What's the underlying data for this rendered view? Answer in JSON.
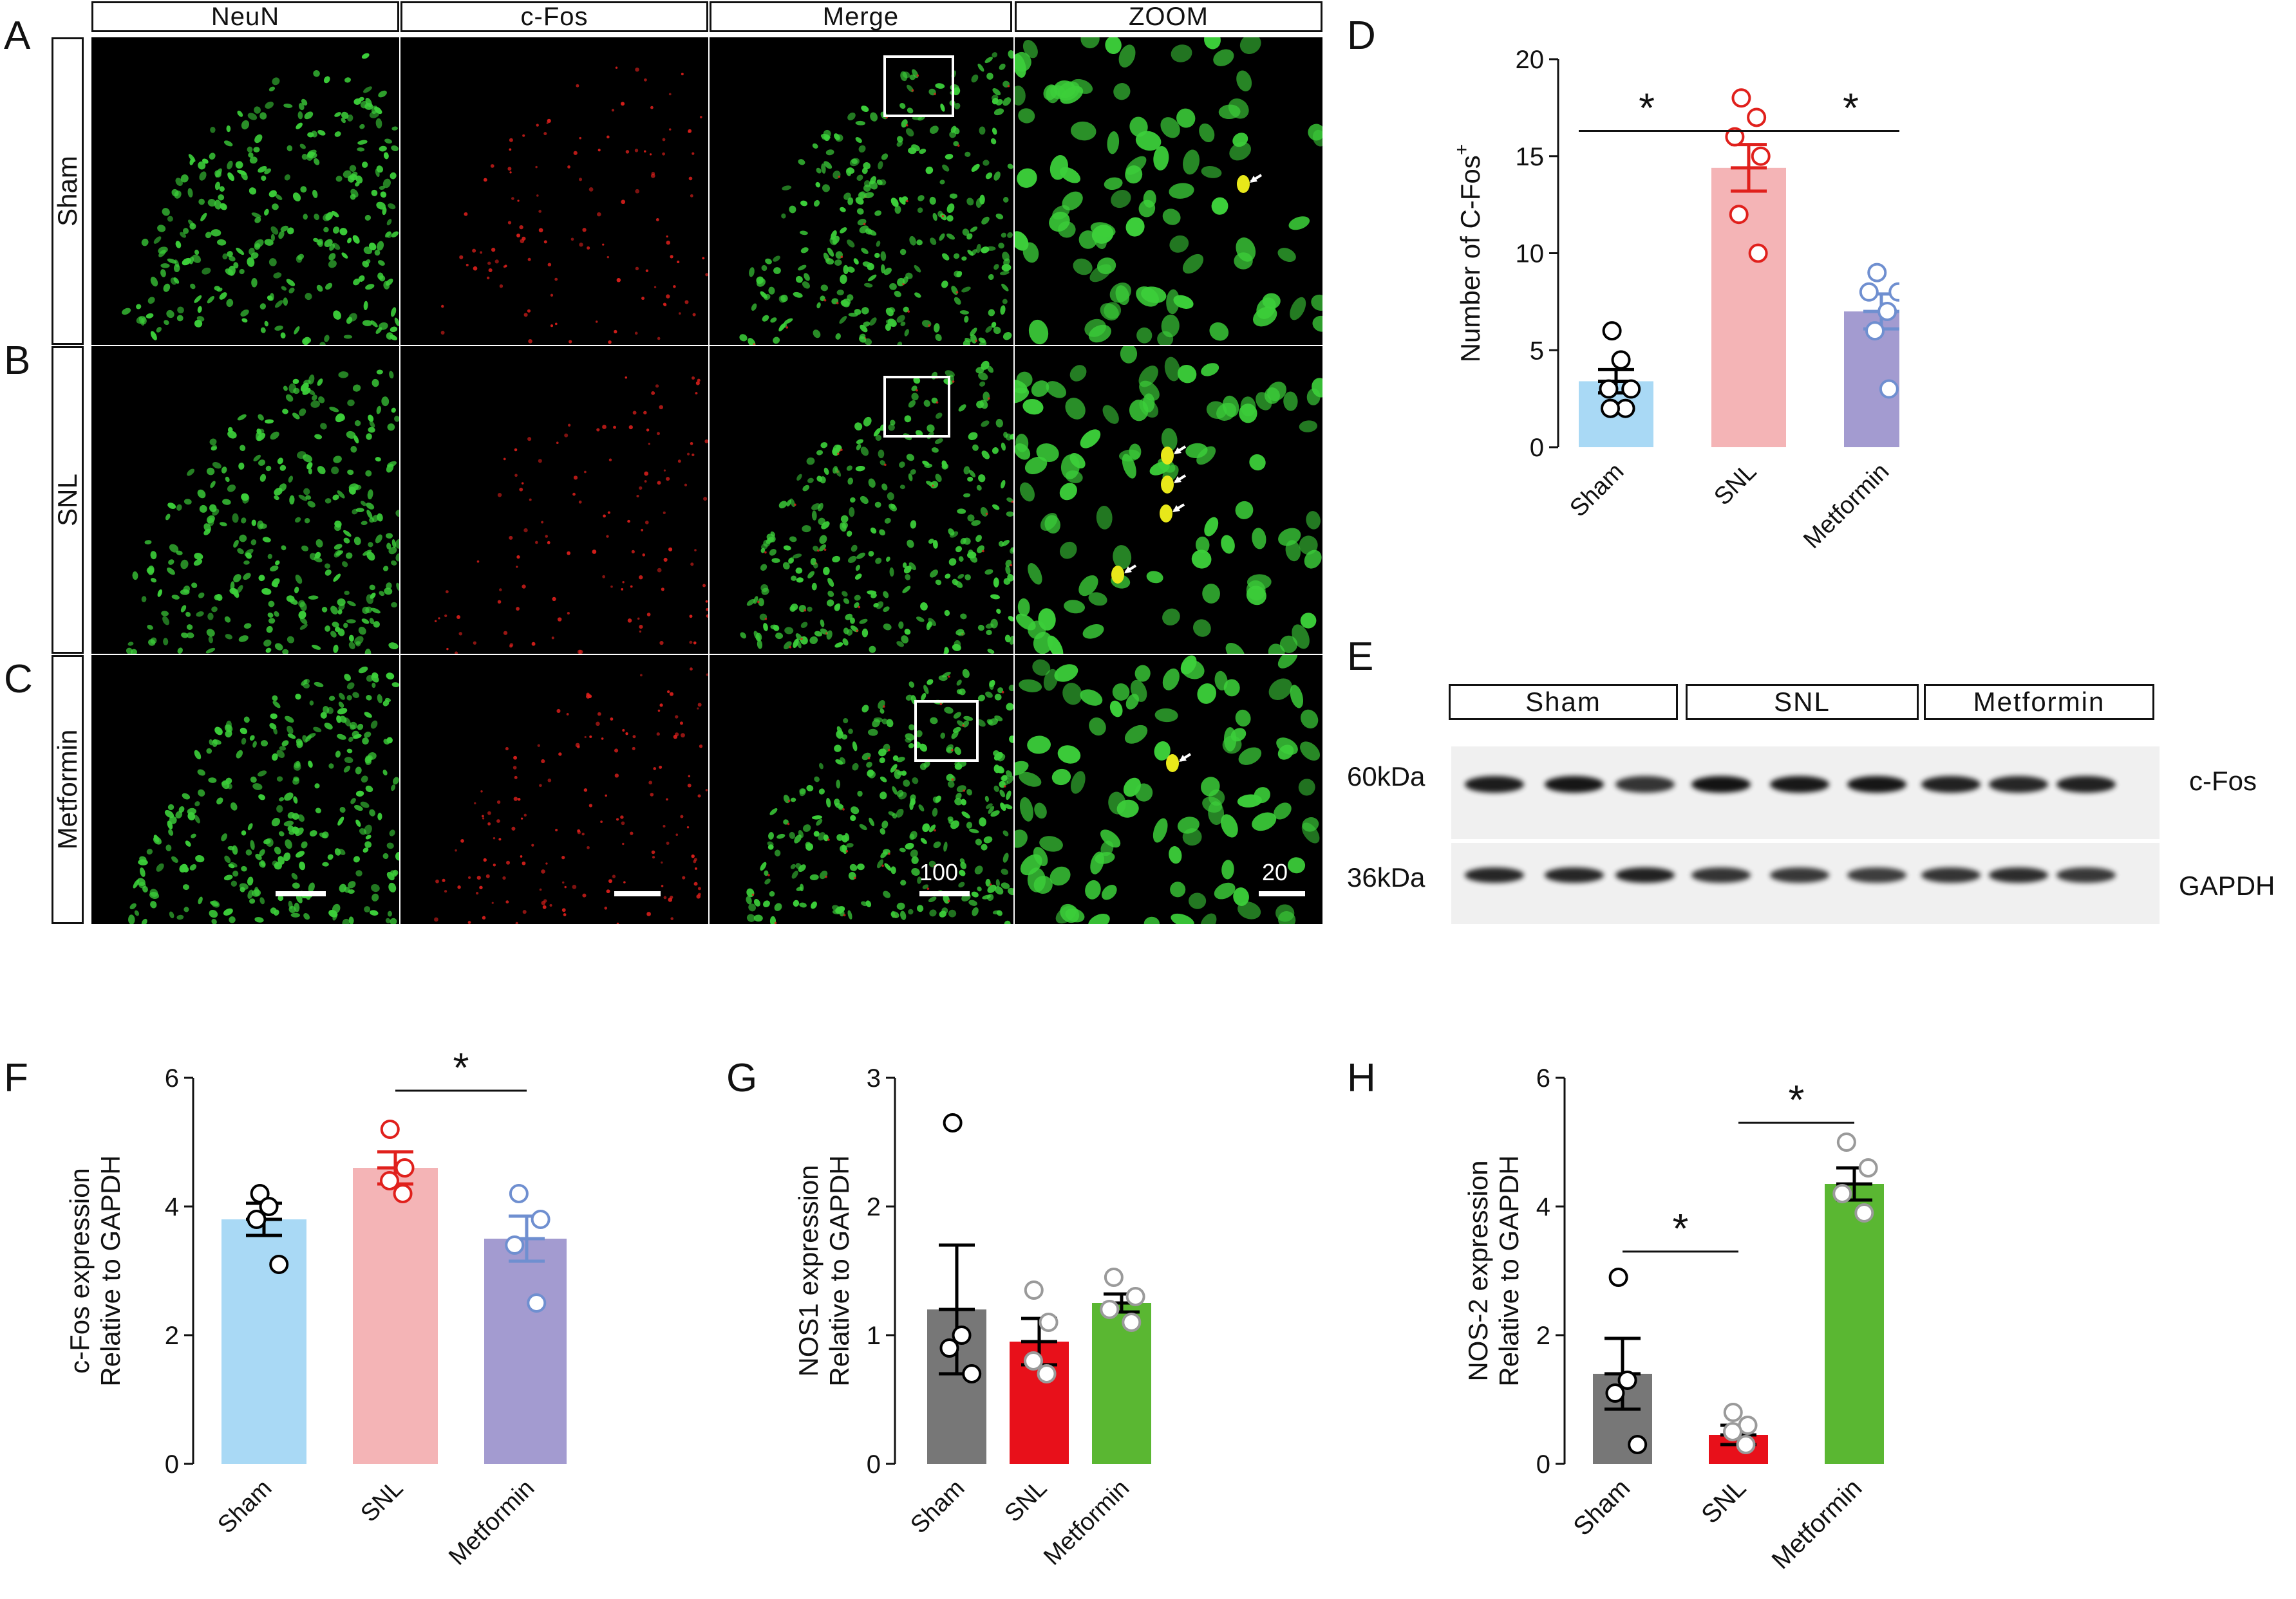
{
  "panel_letters": {
    "A": "A",
    "B": "B",
    "C": "C",
    "D": "D",
    "E": "E",
    "F": "F",
    "G": "G",
    "H": "H"
  },
  "micrograph": {
    "col_headers": [
      "NeuN",
      "c-Fos",
      "Merge",
      "ZOOM"
    ],
    "row_labels": [
      "Sham",
      "SNL",
      "Metformin"
    ],
    "scale_labels": [
      "100",
      "20"
    ],
    "colors": {
      "neun": "#3ccf3a",
      "cfos": "#e0201c",
      "merge_yellow": "#e8e81a",
      "background": "#000000"
    }
  },
  "western_blot": {
    "groups": [
      "Sham",
      "SNL",
      "Metformin"
    ],
    "markers": [
      "60kDa",
      "36kDa"
    ],
    "bands": [
      "c-Fos",
      "GAPDH"
    ],
    "lanes_per_group": 3
  },
  "chart_data": [
    {
      "panel": "D",
      "type": "bar",
      "categories": [
        "Sham",
        "SNL",
        "Metformin"
      ],
      "values": [
        3.4,
        14.4,
        7.0
      ],
      "sem": [
        0.6,
        1.2,
        0.9
      ],
      "points": [
        [
          6,
          4.5,
          3,
          3,
          2,
          2,
          2
        ],
        [
          18,
          17,
          16,
          15,
          12,
          10
        ],
        [
          9,
          8,
          8,
          7,
          6,
          3
        ]
      ],
      "colors": [
        "#a9d9f5",
        "#f4b4b6",
        "#a39bd0"
      ],
      "point_colors": [
        "#000000",
        "#e0201c",
        "#6f8fd0"
      ],
      "errbar_colors": [
        "#000000",
        "#e0201c",
        "#6f8fd0"
      ],
      "ylabel": "Number of C-Fos",
      "ylabel_sup": "+",
      "ylim": [
        0,
        20
      ],
      "yticks": [
        "0",
        "5",
        "10",
        "15",
        "20"
      ],
      "significance": [
        {
          "from": 0,
          "to": 2,
          "y": 16.3,
          "stars": [
            "*",
            "*"
          ]
        }
      ]
    },
    {
      "panel": "F",
      "type": "bar",
      "categories": [
        "Sham",
        "SNL",
        "Metformin"
      ],
      "values": [
        3.8,
        4.6,
        3.5
      ],
      "sem": [
        0.25,
        0.25,
        0.35
      ],
      "points": [
        [
          4.2,
          4.0,
          3.8,
          3.1
        ],
        [
          5.2,
          4.6,
          4.4,
          4.2
        ],
        [
          4.2,
          3.8,
          3.4,
          2.5
        ]
      ],
      "colors": [
        "#a9d9f5",
        "#f4b4b6",
        "#a39bd0"
      ],
      "point_colors": [
        "#000000",
        "#e0201c",
        "#6f8fd0"
      ],
      "errbar_colors": [
        "#000000",
        "#e0201c",
        "#6f8fd0"
      ],
      "ylabel": [
        "c-Fos expression",
        "Relative to GAPDH"
      ],
      "ylim": [
        0,
        6
      ],
      "yticks": [
        "0",
        "2",
        "4",
        "6"
      ],
      "significance": [
        {
          "from": 1,
          "to": 2,
          "y": 5.8,
          "stars": [
            "*"
          ]
        }
      ]
    },
    {
      "panel": "G",
      "type": "bar",
      "categories": [
        "Sham",
        "SNL",
        "Metformin"
      ],
      "values": [
        1.2,
        0.95,
        1.25
      ],
      "sem": [
        0.5,
        0.18,
        0.07
      ],
      "points": [
        [
          2.65,
          1.0,
          0.9,
          0.7
        ],
        [
          1.35,
          1.1,
          0.8,
          0.7
        ],
        [
          1.45,
          1.3,
          1.2,
          1.1
        ]
      ],
      "colors": [
        "#777777",
        "#e8101a",
        "#5ab732"
      ],
      "point_colors": [
        "#000000",
        "#9a9a9a",
        "#9a9a9a"
      ],
      "errbar_colors": [
        "#000000",
        "#000000",
        "#000000"
      ],
      "ylabel": [
        "NOS1 expression",
        "Relative to GAPDH"
      ],
      "ylim": [
        0,
        3
      ],
      "yticks": [
        "0",
        "1",
        "2",
        "3"
      ],
      "significance": []
    },
    {
      "panel": "H",
      "type": "bar",
      "categories": [
        "Sham",
        "SNL",
        "Metformin"
      ],
      "values": [
        1.4,
        0.45,
        4.35
      ],
      "sem": [
        0.55,
        0.15,
        0.25
      ],
      "points": [
        [
          2.9,
          1.3,
          1.1,
          0.3
        ],
        [
          0.8,
          0.6,
          0.5,
          0.3
        ],
        [
          5.0,
          4.6,
          4.2,
          3.9
        ]
      ],
      "colors": [
        "#777777",
        "#e8101a",
        "#5ab732"
      ],
      "point_colors": [
        "#000000",
        "#9a9a9a",
        "#9a9a9a"
      ],
      "errbar_colors": [
        "#000000",
        "#000000",
        "#000000"
      ],
      "ylabel": [
        "NOS-2 expression",
        "Relative to GAPDH"
      ],
      "ylim": [
        0,
        6
      ],
      "yticks": [
        "0",
        "2",
        "4",
        "6"
      ],
      "significance": [
        {
          "from": 0,
          "to": 1,
          "y": 3.3,
          "stars": [
            "*"
          ]
        },
        {
          "from": 1,
          "to": 2,
          "y": 5.3,
          "stars": [
            "*"
          ]
        }
      ]
    }
  ]
}
